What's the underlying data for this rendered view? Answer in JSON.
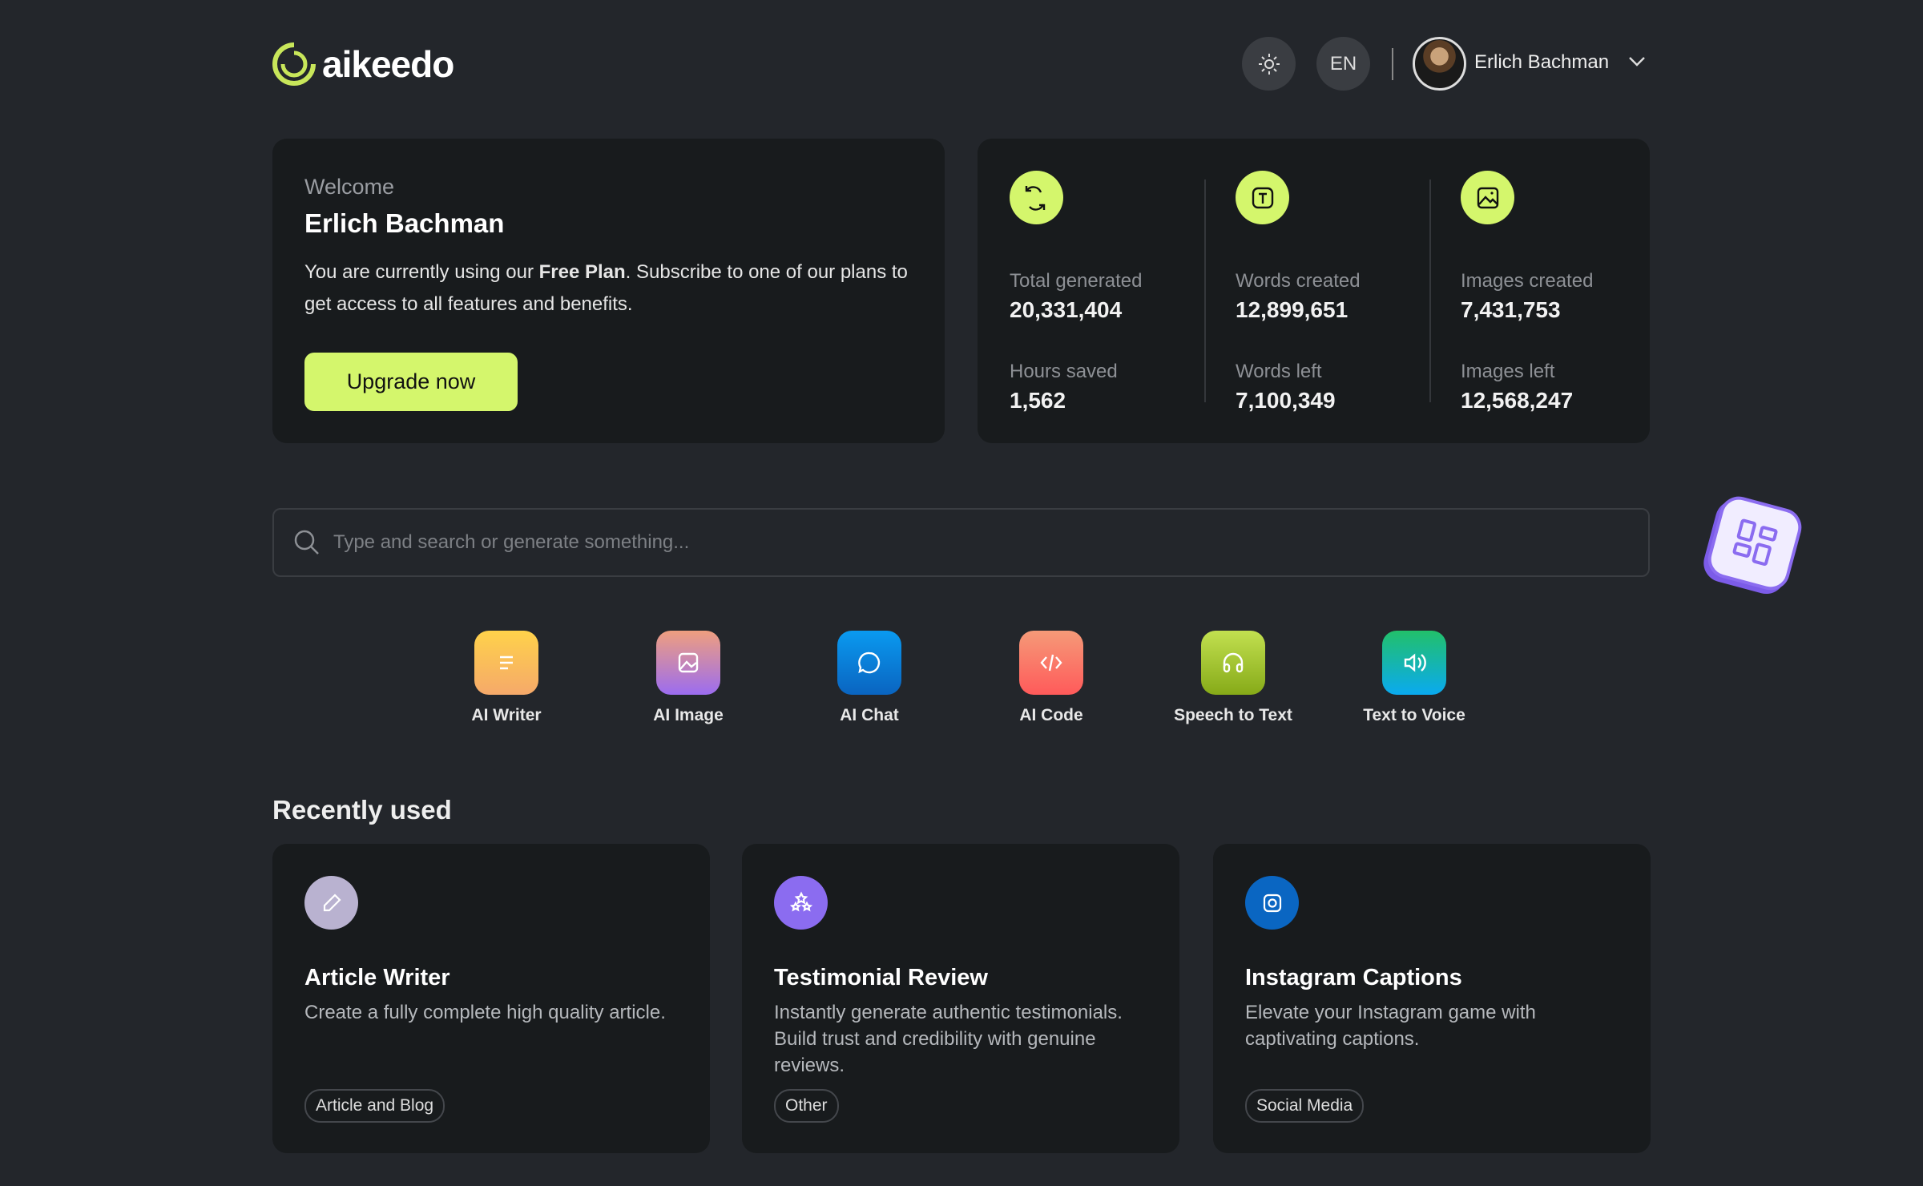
{
  "header": {
    "brand": "aikeedo",
    "language": "EN",
    "user_name": "Erlich Bachman",
    "accent_color": "#d4f66c"
  },
  "welcome": {
    "label": "Welcome",
    "name": "Erlich Bachman",
    "text_before": "You are currently using our ",
    "plan": "Free Plan",
    "text_after": ". Subscribe to one of our plans to get access to all features and benefits.",
    "button": "Upgrade now"
  },
  "stats": [
    {
      "icon": "refresh-icon",
      "items": [
        {
          "label": "Total generated",
          "value": "20,331,404"
        },
        {
          "label": "Hours saved",
          "value": "1,562"
        }
      ]
    },
    {
      "icon": "text-icon",
      "items": [
        {
          "label": "Words created",
          "value": "12,899,651"
        },
        {
          "label": "Words left",
          "value": "7,100,349"
        }
      ]
    },
    {
      "icon": "image-icon",
      "items": [
        {
          "label": "Images created",
          "value": "7,431,753"
        },
        {
          "label": "Images left",
          "value": "12,568,247"
        }
      ]
    }
  ],
  "search": {
    "placeholder": "Type and search or generate something..."
  },
  "tools": [
    {
      "label": "AI Writer",
      "icon": "lines-icon"
    },
    {
      "label": "AI Image",
      "icon": "image-icon"
    },
    {
      "label": "AI Chat",
      "icon": "chat-icon"
    },
    {
      "label": "AI Code",
      "icon": "code-icon"
    },
    {
      "label": "Speech to Text",
      "icon": "headphones-icon"
    },
    {
      "label": "Text to Voice",
      "icon": "speaker-icon"
    }
  ],
  "recent": {
    "title": "Recently used",
    "items": [
      {
        "title": "Article Writer",
        "desc": "Create a fully complete high quality article.",
        "tag": "Article and Blog",
        "icon": "pencil-icon",
        "color": "#b9b2d0"
      },
      {
        "title": "Testimonial Review",
        "desc": "Instantly generate authentic testimonials. Build trust and credibility with genuine reviews.",
        "tag": "Other",
        "icon": "stars-icon",
        "color": "#8b6cf0"
      },
      {
        "title": "Instagram Captions",
        "desc": "Elevate your Instagram game with captivating captions.",
        "tag": "Social Media",
        "icon": "instagram-icon",
        "color": "#0a66c2"
      }
    ]
  }
}
